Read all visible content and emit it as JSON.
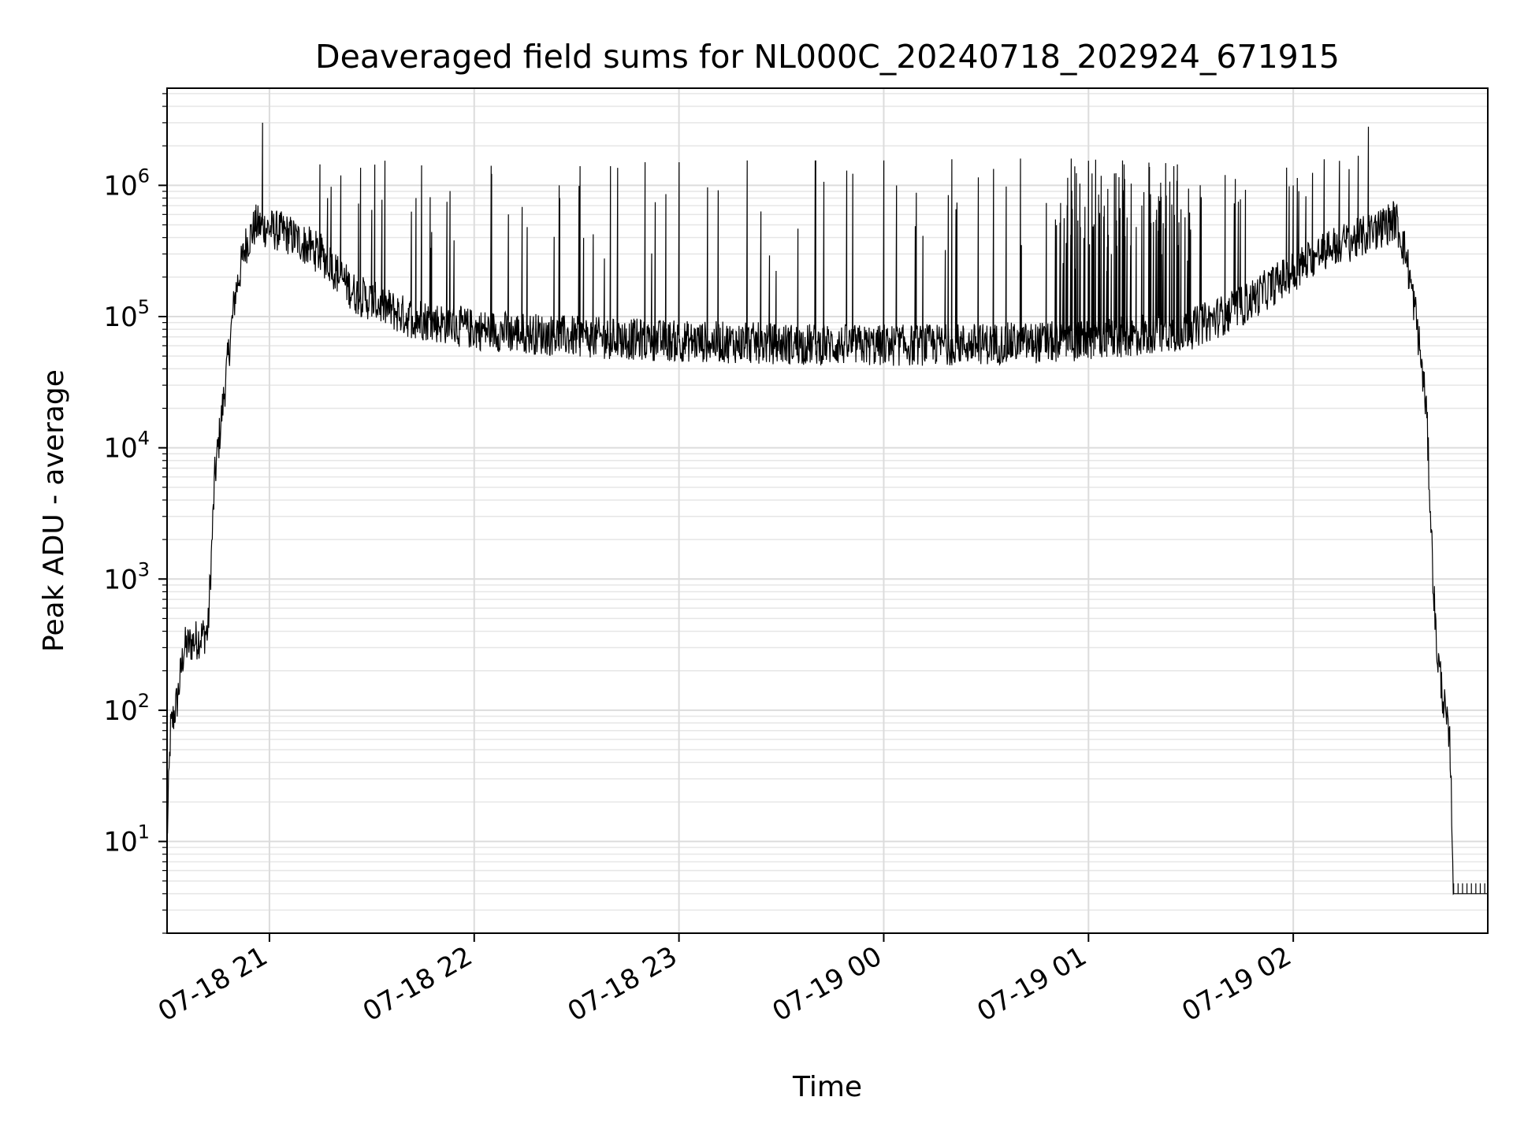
{
  "chart_data": {
    "type": "line",
    "title": "Deaveraged field sums for NL000C_20240718_202924_671915",
    "xlabel": "Time",
    "ylabel": "Peak ADU - average",
    "yscale": "log",
    "ylim": [
      2,
      5500000
    ],
    "xlim": [
      "07-18 20:30",
      "07-19 02:57"
    ],
    "grid": true,
    "line_color": "#000000",
    "x_ticks": [
      {
        "t": "07-18 21:00",
        "label": "07-18 21"
      },
      {
        "t": "07-18 22:00",
        "label": "07-18 22"
      },
      {
        "t": "07-18 23:00",
        "label": "07-18 23"
      },
      {
        "t": "07-19 00:00",
        "label": "07-19 00"
      },
      {
        "t": "07-19 01:00",
        "label": "07-19 01"
      },
      {
        "t": "07-19 02:00",
        "label": "07-19 02"
      }
    ],
    "y_ticks": [
      {
        "value": 10,
        "base": "10",
        "exp": "1"
      },
      {
        "value": 100,
        "base": "10",
        "exp": "2"
      },
      {
        "value": 1000,
        "base": "10",
        "exp": "3"
      },
      {
        "value": 10000,
        "base": "10",
        "exp": "4"
      },
      {
        "value": 100000,
        "base": "10",
        "exp": "5"
      },
      {
        "value": 1000000,
        "base": "10",
        "exp": "6"
      }
    ],
    "series": [
      {
        "name": "",
        "envelope_points": [
          {
            "t": "07-18 20:30",
            "y": 10
          },
          {
            "t": "07-18 20:31",
            "y": 70
          },
          {
            "t": "07-18 20:33",
            "y": 120
          },
          {
            "t": "07-18 20:35",
            "y": 300
          },
          {
            "t": "07-18 20:39",
            "y": 350
          },
          {
            "t": "07-18 20:42",
            "y": 400
          },
          {
            "t": "07-18 20:44",
            "y": 6000
          },
          {
            "t": "07-18 20:47",
            "y": 30000
          },
          {
            "t": "07-18 20:50",
            "y": 150000
          },
          {
            "t": "07-18 20:53",
            "y": 350000
          },
          {
            "t": "07-18 20:56",
            "y": 500000
          },
          {
            "t": "07-18 21:05",
            "y": 430000
          },
          {
            "t": "07-18 21:15",
            "y": 300000
          },
          {
            "t": "07-18 21:25",
            "y": 150000
          },
          {
            "t": "07-18 21:40",
            "y": 100000
          },
          {
            "t": "07-18 22:00",
            "y": 80000
          },
          {
            "t": "07-18 22:30",
            "y": 70000
          },
          {
            "t": "07-18 23:00",
            "y": 65000
          },
          {
            "t": "07-18 23:30",
            "y": 62000
          },
          {
            "t": "07-19 00:00",
            "y": 60000
          },
          {
            "t": "07-19 00:30",
            "y": 62000
          },
          {
            "t": "07-19 01:00",
            "y": 65000
          },
          {
            "t": "07-19 01:30",
            "y": 80000
          },
          {
            "t": "07-19 01:45",
            "y": 120000
          },
          {
            "t": "07-19 02:00",
            "y": 220000
          },
          {
            "t": "07-19 02:10",
            "y": 330000
          },
          {
            "t": "07-19 02:20",
            "y": 400000
          },
          {
            "t": "07-19 02:30",
            "y": 550000
          },
          {
            "t": "07-19 02:33",
            "y": 300000
          },
          {
            "t": "07-19 02:36",
            "y": 100000
          },
          {
            "t": "07-19 02:39",
            "y": 20000
          },
          {
            "t": "07-19 02:41",
            "y": 1000
          },
          {
            "t": "07-19 02:42",
            "y": 300
          },
          {
            "t": "07-19 02:44",
            "y": 120
          },
          {
            "t": "07-19 02:46",
            "y": 50
          },
          {
            "t": "07-19 02:47",
            "y": 4
          },
          {
            "t": "07-19 02:57",
            "y": 4
          }
        ],
        "spikes": [
          {
            "t": "07-18 20:58",
            "y": 3000000
          },
          {
            "t": "07-18 21:17",
            "y": 800000
          },
          {
            "t": "07-18 21:30",
            "y": 650000
          },
          {
            "t": "07-18 21:43",
            "y": 800000
          },
          {
            "t": "07-18 21:52",
            "y": 750000
          },
          {
            "t": "07-18 22:10",
            "y": 600000
          },
          {
            "t": "07-18 22:25",
            "y": 800000
          },
          {
            "t": "07-18 22:31",
            "y": 1400000
          },
          {
            "t": "07-18 22:40",
            "y": 1400000
          },
          {
            "t": "07-18 22:50",
            "y": 1500000
          },
          {
            "t": "07-18 23:00",
            "y": 1500000
          },
          {
            "t": "07-18 23:20",
            "y": 1550000
          },
          {
            "t": "07-18 23:40",
            "y": 1550000
          },
          {
            "t": "07-19 00:00",
            "y": 1550000
          },
          {
            "t": "07-19 00:20",
            "y": 1580000
          },
          {
            "t": "07-19 00:40",
            "y": 1600000
          },
          {
            "t": "07-19 00:55",
            "y": 1600000
          },
          {
            "t": "07-19 01:10",
            "y": 1550000
          },
          {
            "t": "07-19 01:25",
            "y": 1400000
          },
          {
            "t": "07-19 01:40",
            "y": 1200000
          },
          {
            "t": "07-19 02:00",
            "y": 1000000
          },
          {
            "t": "07-19 02:22",
            "y": 2800000
          }
        ],
        "dense_region": [
          "07-19 00:50",
          "07-19 01:30"
        ]
      }
    ]
  }
}
